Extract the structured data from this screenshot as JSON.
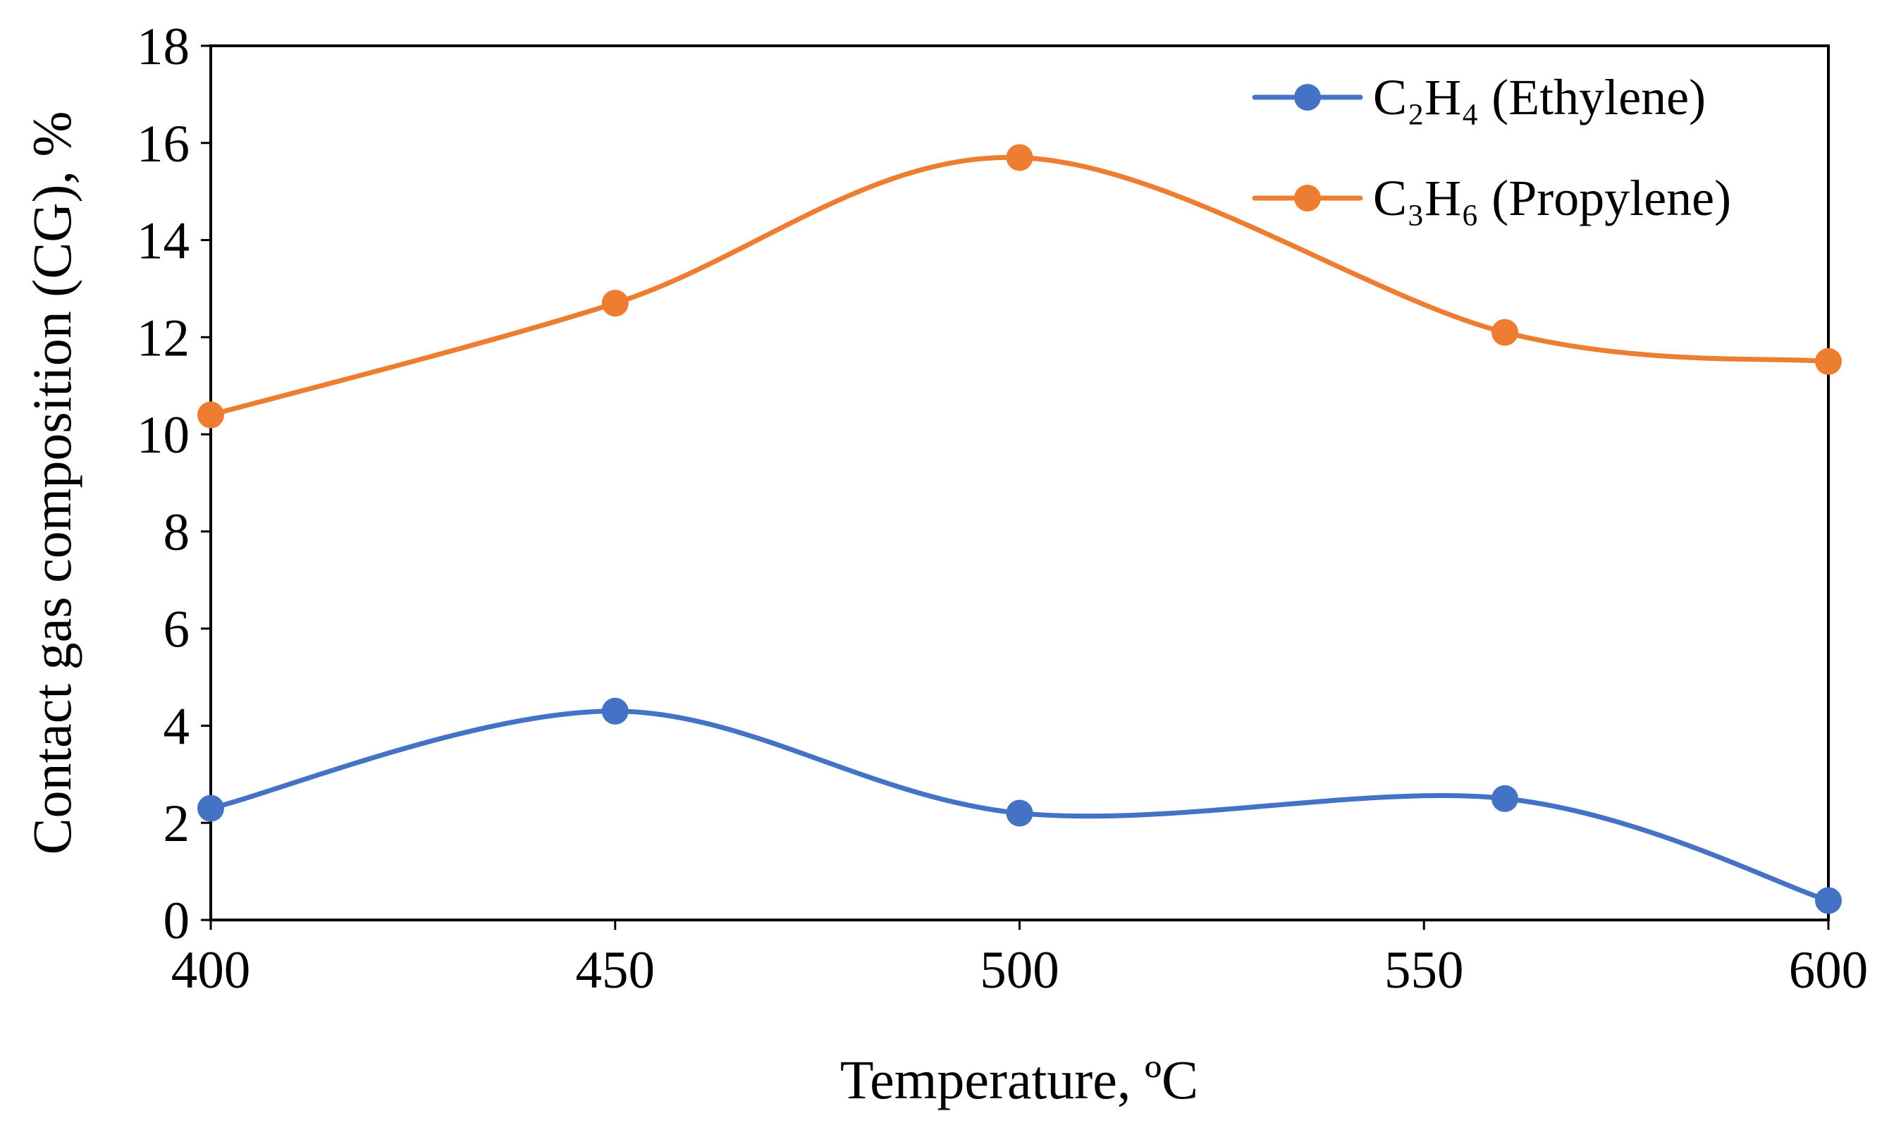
{
  "chart_data": {
    "type": "line",
    "title": "",
    "xlabel": "Temperature, ºC",
    "ylabel": "Contact gas composition (CG), %",
    "xlim": [
      400,
      600
    ],
    "ylim": [
      0,
      18
    ],
    "xticks": [
      400,
      450,
      500,
      550,
      600
    ],
    "yticks": [
      0,
      2,
      4,
      6,
      8,
      10,
      12,
      14,
      16,
      18
    ],
    "grid": false,
    "smooth": true,
    "legend_position": "top-right",
    "series": [
      {
        "name": "C₂H₄ (Ethylene)",
        "color": "#4472C4",
        "x": [
          400,
          450,
          500,
          560,
          600
        ],
        "values": [
          2.3,
          4.3,
          2.2,
          2.5,
          0.4
        ]
      },
      {
        "name": "C₃H₆ (Propylene)",
        "color": "#ED7D31",
        "x": [
          400,
          450,
          500,
          560,
          600
        ],
        "values": [
          10.4,
          12.7,
          15.7,
          12.1,
          11.5
        ]
      }
    ]
  }
}
